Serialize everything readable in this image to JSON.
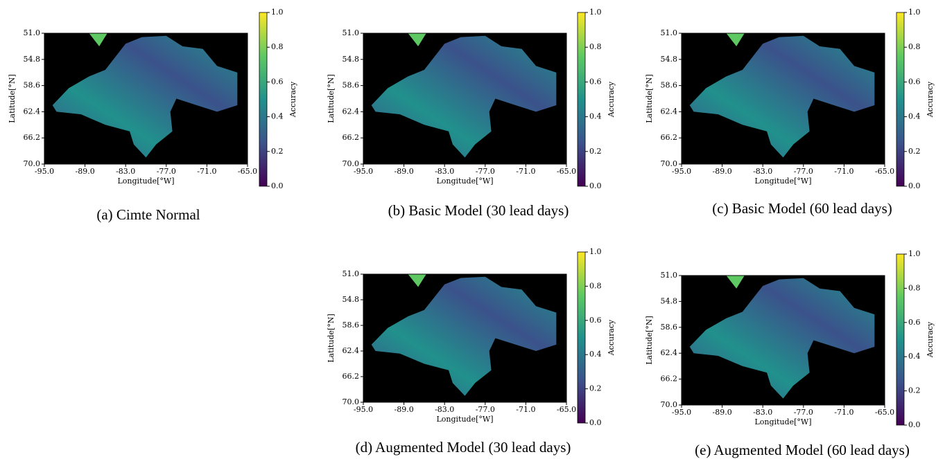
{
  "chart_data": [
    {
      "type": "heatmap",
      "caption": "(a) Cimte Normal",
      "xlabel": "Longitude[$^\\circ$W]",
      "ylabel": "Latitude[$^\\circ$N]",
      "xlim": [
        -95,
        -65
      ],
      "xticks": [
        {
          "value": -95,
          "label": "-95.0"
        },
        {
          "value": -89,
          "label": "-89.0"
        },
        {
          "value": -83,
          "label": "-83.0"
        },
        {
          "value": -77,
          "label": "-77.0"
        },
        {
          "value": -71,
          "label": "-71.0"
        },
        {
          "value": -65,
          "label": "-65.0"
        }
      ],
      "ylim": [
        70,
        51
      ],
      "yticks": [
        {
          "value": 51,
          "label": "51.0"
        },
        {
          "value": 54.8,
          "label": "54.8"
        },
        {
          "value": 58.6,
          "label": "58.6"
        },
        {
          "value": 62.4,
          "label": "62.4"
        },
        {
          "value": 66.2,
          "label": "66.2"
        },
        {
          "value": 70,
          "label": "70.0"
        }
      ],
      "colorbar": {
        "label": "Accuracy",
        "lim": [
          0,
          1
        ],
        "ticks": [
          {
            "value": 0,
            "label": "0.0"
          },
          {
            "value": 0.2,
            "label": "0.2"
          },
          {
            "value": 0.4,
            "label": "0.4"
          },
          {
            "value": 0.6,
            "label": "0.6"
          },
          {
            "value": 0.8,
            "label": "0.8"
          },
          {
            "value": 1,
            "label": "1.0"
          }
        ]
      },
      "colormap": [
        "#440154",
        "#3b528b",
        "#21918c",
        "#5ec962",
        "#fde725"
      ]
    },
    {
      "type": "heatmap",
      "caption": "(b) Basic Model (30 lead days)",
      "xlabel": "Longitude[$^\\circ$W]",
      "ylabel": "Latitude[$^\\circ$N]",
      "xlim": [
        -95,
        -65
      ],
      "xticks": [
        {
          "value": -95,
          "label": "-95.0"
        },
        {
          "value": -89,
          "label": "-89.0"
        },
        {
          "value": -83,
          "label": "-83.0"
        },
        {
          "value": -77,
          "label": "-77.0"
        },
        {
          "value": -71,
          "label": "-71.0"
        },
        {
          "value": -65,
          "label": "-65.0"
        }
      ],
      "ylim": [
        70,
        51
      ],
      "yticks": [
        {
          "value": 51,
          "label": "51.0"
        },
        {
          "value": 54.8,
          "label": "54.8"
        },
        {
          "value": 58.6,
          "label": "58.6"
        },
        {
          "value": 62.4,
          "label": "62.4"
        },
        {
          "value": 66.2,
          "label": "66.2"
        },
        {
          "value": 70,
          "label": "70.0"
        }
      ],
      "colorbar": {
        "label": "Accuracy",
        "lim": [
          0,
          1
        ],
        "ticks": [
          {
            "value": 0,
            "label": "0.0"
          },
          {
            "value": 0.2,
            "label": "0.2"
          },
          {
            "value": 0.4,
            "label": "0.4"
          },
          {
            "value": 0.6,
            "label": "0.6"
          },
          {
            "value": 0.8,
            "label": "0.8"
          },
          {
            "value": 1,
            "label": "1.0"
          }
        ]
      },
      "colormap": [
        "#440154",
        "#3b528b",
        "#21918c",
        "#5ec962",
        "#fde725"
      ]
    },
    {
      "type": "heatmap",
      "caption": "(c) Basic Model (60 lead days)",
      "xlabel": "Longitude[$^\\circ$W]",
      "ylabel": "Latitude[$^\\circ$N]",
      "xlim": [
        -95,
        -65
      ],
      "xticks": [
        {
          "value": -95,
          "label": "-95.0"
        },
        {
          "value": -89,
          "label": "-89.0"
        },
        {
          "value": -83,
          "label": "-83.0"
        },
        {
          "value": -77,
          "label": "-77.0"
        },
        {
          "value": -71,
          "label": "-71.0"
        },
        {
          "value": -65,
          "label": "-65.0"
        }
      ],
      "ylim": [
        70,
        51
      ],
      "yticks": [
        {
          "value": 51,
          "label": "51.0"
        },
        {
          "value": 54.8,
          "label": "54.8"
        },
        {
          "value": 58.6,
          "label": "58.6"
        },
        {
          "value": 62.4,
          "label": "62.4"
        },
        {
          "value": 66.2,
          "label": "66.2"
        },
        {
          "value": 70,
          "label": "70.0"
        }
      ],
      "colorbar": {
        "label": "Accuracy",
        "lim": [
          0,
          1
        ],
        "ticks": [
          {
            "value": 0,
            "label": "0.0"
          },
          {
            "value": 0.2,
            "label": "0.2"
          },
          {
            "value": 0.4,
            "label": "0.4"
          },
          {
            "value": 0.6,
            "label": "0.6"
          },
          {
            "value": 0.8,
            "label": "0.8"
          },
          {
            "value": 1,
            "label": "1.0"
          }
        ]
      },
      "colormap": [
        "#440154",
        "#3b528b",
        "#21918c",
        "#5ec962",
        "#fde725"
      ]
    },
    {
      "type": "heatmap",
      "caption": "(d) Augmented Model (30 lead days)",
      "xlabel": "Longitude[$^\\circ$W]",
      "ylabel": "Latitude[$^\\circ$N]",
      "xlim": [
        -95,
        -65
      ],
      "xticks": [
        {
          "value": -95,
          "label": "-95.0"
        },
        {
          "value": -89,
          "label": "-89.0"
        },
        {
          "value": -83,
          "label": "-83.0"
        },
        {
          "value": -77,
          "label": "-77.0"
        },
        {
          "value": -71,
          "label": "-71.0"
        },
        {
          "value": -65,
          "label": "-65.0"
        }
      ],
      "ylim": [
        70,
        51
      ],
      "yticks": [
        {
          "value": 51,
          "label": "51.0"
        },
        {
          "value": 54.8,
          "label": "54.8"
        },
        {
          "value": 58.6,
          "label": "58.6"
        },
        {
          "value": 62.4,
          "label": "62.4"
        },
        {
          "value": 66.2,
          "label": "66.2"
        },
        {
          "value": 70,
          "label": "70.0"
        }
      ],
      "colorbar": {
        "label": "Accuracy",
        "lim": [
          0,
          1
        ],
        "ticks": [
          {
            "value": 0,
            "label": "0.0"
          },
          {
            "value": 0.2,
            "label": "0.2"
          },
          {
            "value": 0.4,
            "label": "0.4"
          },
          {
            "value": 0.6,
            "label": "0.6"
          },
          {
            "value": 0.8,
            "label": "0.8"
          },
          {
            "value": 1,
            "label": "1.0"
          }
        ]
      },
      "colormap": [
        "#440154",
        "#3b528b",
        "#21918c",
        "#5ec962",
        "#fde725"
      ]
    },
    {
      "type": "heatmap",
      "caption": "(e) Augmented Model (60 lead days)",
      "xlabel": "Longitude[$^\\circ$W]",
      "ylabel": "Latitude[$^\\circ$N]",
      "xlim": [
        -95,
        -65
      ],
      "xticks": [
        {
          "value": -95,
          "label": "-95.0"
        },
        {
          "value": -89,
          "label": "-89.0"
        },
        {
          "value": -83,
          "label": "-83.0"
        },
        {
          "value": -77,
          "label": "-77.0"
        },
        {
          "value": -71,
          "label": "-71.0"
        },
        {
          "value": -65,
          "label": "-65.0"
        }
      ],
      "ylim": [
        70,
        51
      ],
      "yticks": [
        {
          "value": 51,
          "label": "51.0"
        },
        {
          "value": 54.8,
          "label": "54.8"
        },
        {
          "value": 58.6,
          "label": "58.6"
        },
        {
          "value": 62.4,
          "label": "62.4"
        },
        {
          "value": 66.2,
          "label": "66.2"
        },
        {
          "value": 70,
          "label": "70.0"
        }
      ],
      "colorbar": {
        "label": "Accuracy",
        "lim": [
          0,
          1
        ],
        "ticks": [
          {
            "value": 0,
            "label": "0.0"
          },
          {
            "value": 0.2,
            "label": "0.2"
          },
          {
            "value": 0.4,
            "label": "0.4"
          },
          {
            "value": 0.6,
            "label": "0.6"
          },
          {
            "value": 0.8,
            "label": "0.8"
          },
          {
            "value": 1,
            "label": "1.0"
          }
        ]
      },
      "colormap": [
        "#440154",
        "#3b528b",
        "#21918c",
        "#5ec962",
        "#fde725"
      ]
    }
  ]
}
